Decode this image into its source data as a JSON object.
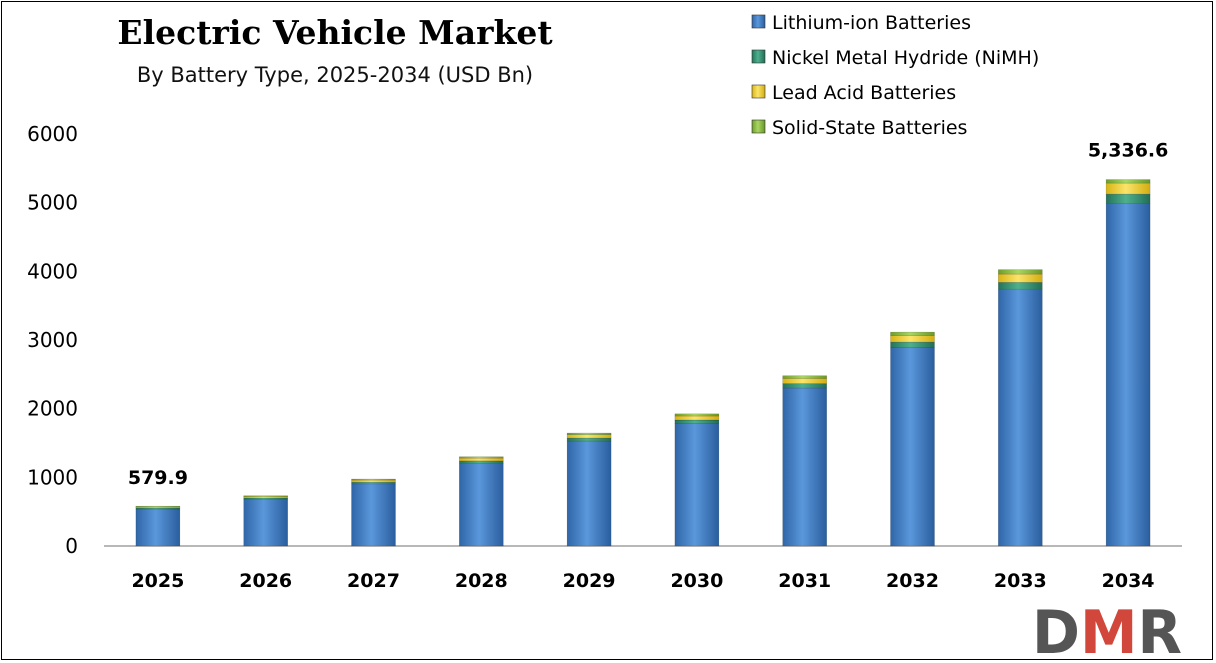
{
  "colors": {
    "lithium": "#3a7cc9",
    "nimh": "#2e8b6d",
    "lead": "#f2cf1f",
    "solid": "#8dbf3f",
    "axis": "#a0a0a0",
    "logo_dark": "#555555",
    "logo_red": "#d2473c"
  },
  "logo": {
    "text": "DMR"
  },
  "chart_data": {
    "type": "bar",
    "stacked": true,
    "title": "Electric Vehicle Market",
    "subtitle": "By Battery Type, 2025-2034 (USD Bn)",
    "xlabel": "",
    "ylabel": "",
    "ylim": [
      0,
      6000
    ],
    "yticks": [
      0,
      1000,
      2000,
      3000,
      4000,
      5000,
      6000
    ],
    "grid": false,
    "legend_position": "top-right",
    "categories": [
      "2025",
      "2026",
      "2027",
      "2028",
      "2029",
      "2030",
      "2031",
      "2032",
      "2033",
      "2034"
    ],
    "series": [
      {
        "name": "Lithium-ion Batteries",
        "color_key": "lithium",
        "values": [
          540,
          680,
          905,
          1205,
          1530,
          1785,
          2300,
          2890,
          3740,
          4990
        ]
      },
      {
        "name": "Nickel Metal Hydride (NiMH)",
        "color_key": "nimh",
        "values": [
          15,
          20,
          25,
          35,
          42,
          50,
          65,
          80,
          100,
          135
        ]
      },
      {
        "name": "Lead Acid Batteries",
        "color_key": "lead",
        "values": [
          17,
          22,
          30,
          40,
          48,
          58,
          75,
          95,
          120,
          160
        ]
      },
      {
        "name": "Solid-State Batteries",
        "color_key": "solid",
        "values": [
          7.9,
          10,
          15,
          20,
          25,
          32,
          40,
          50,
          65,
          51.6
        ]
      }
    ],
    "data_labels": [
      {
        "category": "2025",
        "text": "579.9"
      },
      {
        "category": "2034",
        "text": "5,336.6"
      }
    ]
  }
}
